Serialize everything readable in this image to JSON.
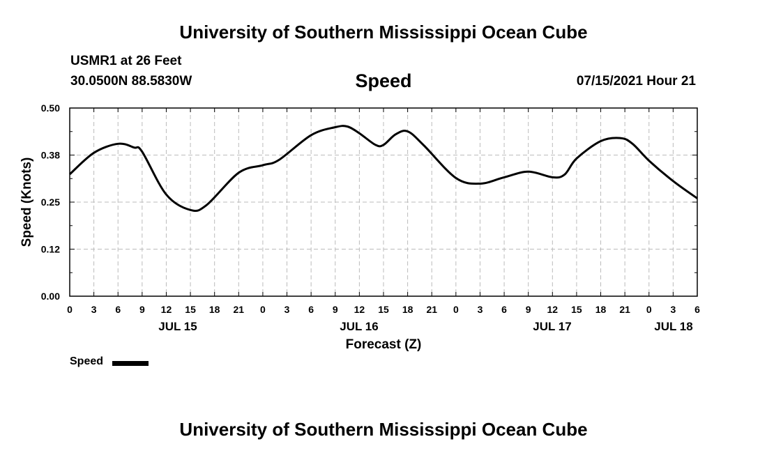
{
  "header": {
    "title": "University of Southern Mississippi Ocean Cube",
    "station": "USMR1 at 26 Feet",
    "coords": "30.0500N  88.5830W",
    "variable": "Speed",
    "issued": "07/15/2021 Hour 21"
  },
  "legend": {
    "label": "Speed"
  },
  "footer": {
    "title": "University of Southern Mississippi Ocean Cube"
  },
  "colors": {
    "line": "#000000",
    "grid": "#bbbbbb",
    "background": "#ffffff"
  },
  "chart_data": {
    "type": "line",
    "title": "Speed",
    "xlabel": "Forecast (Z)",
    "ylabel": "Speed (Knots)",
    "ylim": [
      0,
      0.5
    ],
    "yticks": [
      "0.00",
      "0.12",
      "0.25",
      "0.38",
      "0.50"
    ],
    "xlim_hours": [
      0,
      78
    ],
    "xtick_labels": [
      "0",
      "3",
      "6",
      "9",
      "12",
      "15",
      "18",
      "21",
      "0",
      "3",
      "6",
      "9",
      "12",
      "15",
      "18",
      "21",
      "0",
      "3",
      "6",
      "9",
      "12",
      "15",
      "18",
      "21",
      "0",
      "3",
      "6"
    ],
    "date_labels": [
      {
        "label": "JUL 15",
        "hour": 12
      },
      {
        "label": "JUL 16",
        "hour": 36
      },
      {
        "label": "JUL 17",
        "hour": 60
      },
      {
        "label": "JUL 18",
        "hour": 75.5
      }
    ],
    "grid": true,
    "legend_position": "bottom-left",
    "series": [
      {
        "name": "Speed",
        "x": [
          0,
          3,
          6,
          8,
          9,
          12,
          15,
          17,
          21,
          24,
          26,
          30,
          33,
          34.5,
          36,
          38,
          39,
          40.5,
          42,
          44,
          48,
          51,
          54,
          57,
          60,
          61.5,
          63,
          66,
          68.5,
          70,
          72,
          75,
          78
        ],
        "y": [
          0.324,
          0.381,
          0.405,
          0.395,
          0.384,
          0.27,
          0.229,
          0.242,
          0.328,
          0.348,
          0.362,
          0.428,
          0.449,
          0.451,
          0.433,
          0.402,
          0.402,
          0.43,
          0.438,
          0.401,
          0.314,
          0.299,
          0.316,
          0.331,
          0.316,
          0.323,
          0.366,
          0.412,
          0.42,
          0.404,
          0.36,
          0.306,
          0.26
        ]
      }
    ]
  }
}
